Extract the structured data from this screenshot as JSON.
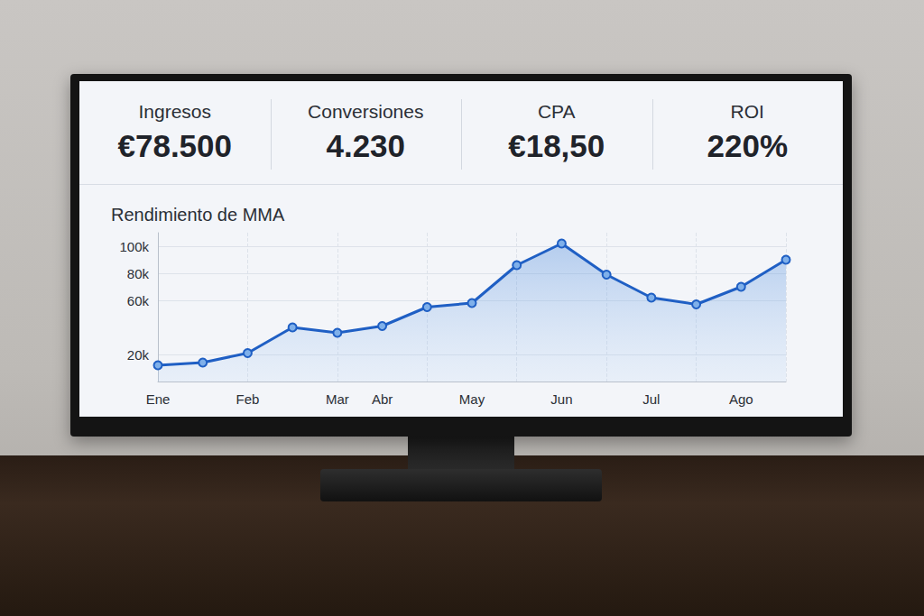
{
  "kpis": [
    {
      "label": "Ingresos",
      "value": "€78.500"
    },
    {
      "label": "Conversiones",
      "value": "4.230"
    },
    {
      "label": "CPA",
      "value": "€18,50"
    },
    {
      "label": "ROI",
      "value": "220%"
    }
  ],
  "chart_data": {
    "type": "line",
    "title": "Rendimiento de MMA",
    "categories": [
      "Ene",
      null,
      "Feb",
      null,
      "Mar",
      "Abr",
      null,
      "May",
      null,
      "Jun",
      null,
      "Jul",
      null,
      "Ago",
      null
    ],
    "values": [
      12000,
      14000,
      21000,
      40000,
      36000,
      41000,
      55000,
      58000,
      86000,
      102000,
      79000,
      62000,
      57000,
      70000,
      90000
    ],
    "color": "#1f5fc4",
    "ylim": [
      0,
      110000
    ],
    "yticks": [
      {
        "value": 20000,
        "label": "20k"
      },
      {
        "value": 60000,
        "label": "60k"
      },
      {
        "value": 80000,
        "label": "80k"
      },
      {
        "value": 100000,
        "label": "100k"
      }
    ],
    "grid": true,
    "marker": "circle"
  }
}
